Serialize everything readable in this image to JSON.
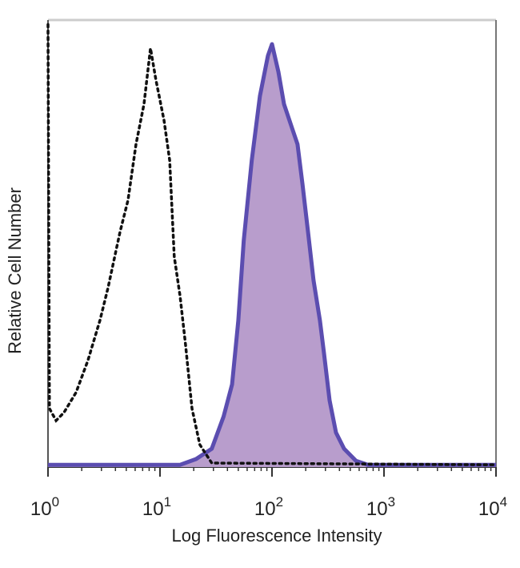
{
  "chart_data": {
    "type": "area",
    "title": "",
    "xlabel": "Log Fluorescence Intensity",
    "ylabel": "Relative Cell Number",
    "xscale": "log",
    "xlim": [
      1,
      10000
    ],
    "ylim": [
      0,
      100
    ],
    "grid": false,
    "legend": "none",
    "x_ticks": [
      {
        "value": 1,
        "base": "10",
        "exp": "0"
      },
      {
        "value": 10,
        "base": "10",
        "exp": "1"
      },
      {
        "value": 100,
        "base": "10",
        "exp": "2"
      },
      {
        "value": 1000,
        "base": "10",
        "exp": "3"
      },
      {
        "value": 10000,
        "base": "10",
        "exp": "4"
      }
    ],
    "series": [
      {
        "style": "dotted-line",
        "color": "#111111",
        "x": [
          1,
          1.03,
          1.18,
          1.39,
          1.78,
          2.27,
          2.91,
          3.43,
          4.39,
          5.18,
          6.11,
          7.2,
          8.22,
          9.2,
          10.86,
          12.2,
          13.4,
          15.1,
          16.9,
          19.3,
          22.7,
          29,
          10000
        ],
        "y": [
          99,
          13.1,
          10.4,
          12.2,
          16.7,
          23.8,
          32.8,
          40,
          52.5,
          59.7,
          72.2,
          81.2,
          93.7,
          86.6,
          77.6,
          68.6,
          47.1,
          38.2,
          27.4,
          13.1,
          5,
          0.9,
          0.5
        ]
      },
      {
        "style": "filled",
        "color": "#5b4db0",
        "fill": "#b89dcc",
        "x": [
          1,
          15.1,
          21,
          29,
          37,
          44,
          50,
          56,
          66,
          78,
          92,
          100,
          114,
          128,
          151,
          169,
          187,
          210,
          235,
          268,
          291,
          327,
          373,
          440,
          562,
          720,
          10000
        ],
        "y": [
          0.5,
          0.5,
          1.8,
          4.1,
          11.3,
          18.5,
          32.8,
          50.7,
          68.6,
          83,
          92,
          94.6,
          88.4,
          81.2,
          75.8,
          72.2,
          63.3,
          52.5,
          41.8,
          32.8,
          25.6,
          14.9,
          7.7,
          4.1,
          1.4,
          0.5,
          0.5
        ]
      }
    ]
  }
}
